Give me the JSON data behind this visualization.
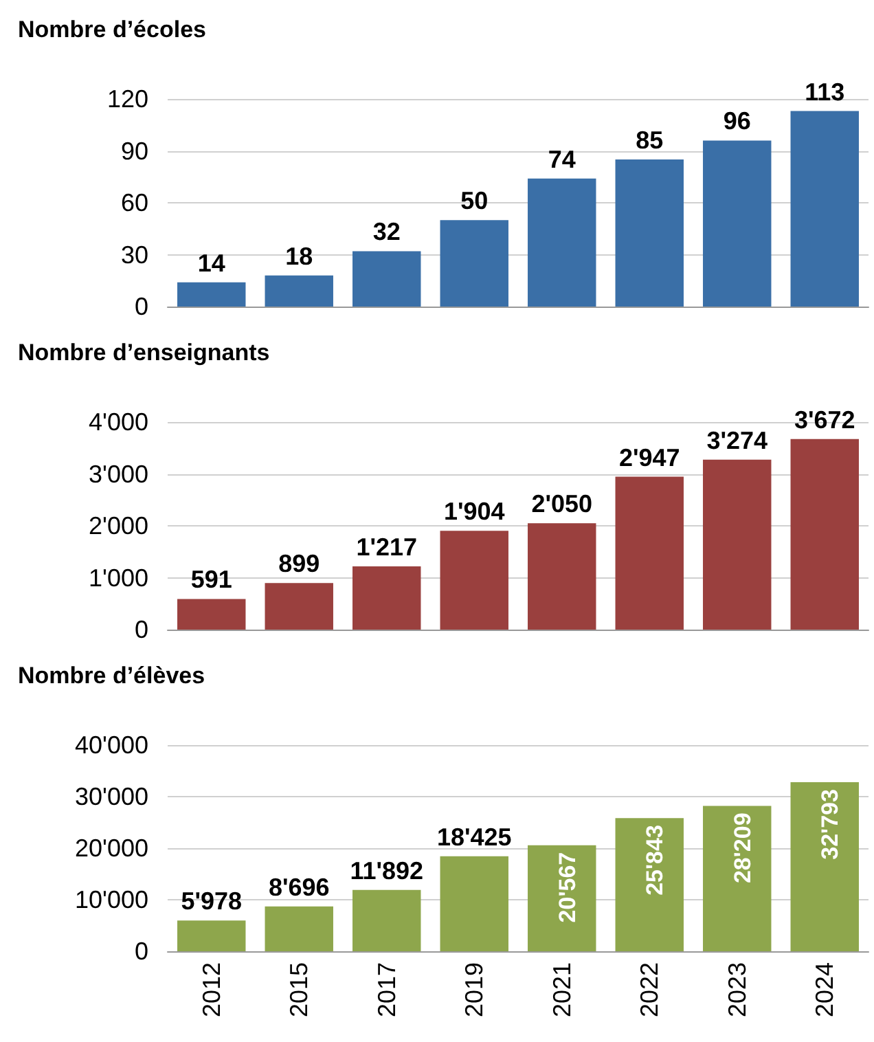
{
  "chart_data": [
    {
      "type": "bar",
      "title": "Nombre d’écoles",
      "categories": [
        "2012",
        "2015",
        "2017",
        "2019",
        "2021",
        "2022",
        "2023",
        "2024"
      ],
      "values": [
        14,
        18,
        32,
        50,
        74,
        85,
        96,
        113
      ],
      "color": "#3a6fa7",
      "value_labels": [
        "14",
        "18",
        "32",
        "50",
        "74",
        "85",
        "96",
        "113"
      ],
      "ylim": [
        0,
        120
      ],
      "yticks": [
        0,
        30,
        60,
        90,
        120
      ],
      "grid": "y",
      "tick_labels": "y"
    },
    {
      "type": "bar",
      "title": "Nombre d’enseignants",
      "categories": [
        "2012",
        "2015",
        "2017",
        "2019",
        "2021",
        "2022",
        "2023",
        "2024"
      ],
      "values": [
        591,
        899,
        1217,
        1904,
        2050,
        2947,
        3274,
        3672
      ],
      "color": "#9a403e",
      "value_labels": [
        "591",
        "899",
        "1'217",
        "1'904",
        "2'050",
        "2'947",
        "3'274",
        "3'672"
      ],
      "ylim": [
        0,
        4000
      ],
      "yticks": [
        0,
        {
          "value": 1000,
          "label": "1'000"
        },
        {
          "value": 2000,
          "label": "2'000"
        },
        {
          "value": 3000,
          "label": "3'000"
        },
        {
          "value": 4000,
          "label": "4'000"
        }
      ],
      "grid": "y",
      "tick_labels": "y"
    },
    {
      "type": "bar",
      "title": "Nombre d’élèves",
      "categories": [
        "2012",
        "2015",
        "2017",
        "2019",
        "2021",
        "2022",
        "2023",
        "2024"
      ],
      "values": [
        5978,
        8696,
        11892,
        18425,
        20567,
        25843,
        28209,
        32793
      ],
      "color": "#8ea64c",
      "value_labels": [
        "5'978",
        "8'696",
        "11'892",
        "18'425",
        "20'567",
        "25'843",
        "28'209",
        "32'793"
      ],
      "ylim": [
        0,
        40000
      ],
      "yticks": [
        0,
        {
          "value": 10000,
          "label": "10'000"
        },
        {
          "value": 20000,
          "label": "20'000"
        },
        {
          "value": 30000,
          "label": "30'000"
        },
        {
          "value": 40000,
          "label": "40'000"
        }
      ],
      "grid": "y"
    }
  ]
}
